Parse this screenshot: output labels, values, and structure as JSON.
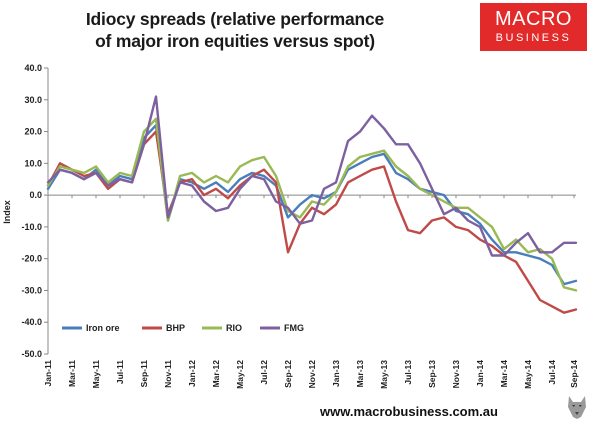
{
  "title": {
    "line1": "Idiocy spreads (relative performance",
    "line2": "of major iron equities versus spot)"
  },
  "logo": {
    "line1": "MACRO",
    "line2": "BUSINESS",
    "color": "#e32a2a",
    "icon": "wolf-badge-icon"
  },
  "footer": {
    "url": "www.macrobusiness.com.au"
  },
  "chart_data": {
    "type": "line",
    "ylabel": "Index",
    "ylim": [
      -50,
      40
    ],
    "yticks": [
      -50,
      -40,
      -30,
      -20,
      -10,
      0,
      10,
      20,
      30,
      40
    ],
    "ytick_labels": [
      "-50.0",
      "-40.0",
      "-30.0",
      "-20.0",
      "-10.0",
      "0.0",
      "10.0",
      "20.0",
      "30.0",
      "40.0"
    ],
    "xrange": [
      "2011-01",
      "2014-09"
    ],
    "xtick_labels": [
      "Jan-11",
      "Mar-11",
      "May-11",
      "Jul-11",
      "Sep-11",
      "Nov-11",
      "Jan-12",
      "Mar-12",
      "May-12",
      "Jul-12",
      "Sep-12",
      "Nov-12",
      "Jan-13",
      "Mar-13",
      "May-13",
      "Jul-13",
      "Sep-13",
      "Nov-13",
      "Jan-14",
      "Mar-14",
      "May-14",
      "Jul-14",
      "Sep-14"
    ],
    "legend_position": "lower-left",
    "grid": false,
    "x": [
      "2011-01",
      "2011-02",
      "2011-03",
      "2011-04",
      "2011-05",
      "2011-06",
      "2011-07",
      "2011-08",
      "2011-09",
      "2011-10",
      "2011-11",
      "2011-12",
      "2012-01",
      "2012-02",
      "2012-03",
      "2012-04",
      "2012-05",
      "2012-06",
      "2012-07",
      "2012-08",
      "2012-09",
      "2012-10",
      "2012-11",
      "2012-12",
      "2013-01",
      "2013-02",
      "2013-03",
      "2013-04",
      "2013-05",
      "2013-06",
      "2013-07",
      "2013-08",
      "2013-09",
      "2013-10",
      "2013-11",
      "2013-12",
      "2014-01",
      "2014-02",
      "2014-03",
      "2014-04",
      "2014-05",
      "2014-06",
      "2014-07",
      "2014-08",
      "2014-09"
    ],
    "series": [
      {
        "name": "Iron ore",
        "color": "#4a7ebb",
        "values": [
          2,
          8,
          7,
          5,
          8,
          3,
          6,
          5,
          18,
          22,
          -8,
          5,
          4,
          2,
          4,
          1,
          5,
          7,
          6,
          3,
          -7,
          -3,
          0,
          -1,
          1,
          8,
          10,
          12,
          13,
          7,
          5,
          2,
          1,
          0,
          -5,
          -6,
          -9,
          -14,
          -18,
          -18,
          -19,
          -20,
          -22,
          -28,
          -27
        ]
      },
      {
        "name": "BHP",
        "color": "#be4b48",
        "values": [
          3,
          10,
          8,
          6,
          7,
          2,
          5,
          4,
          16,
          20,
          -6,
          4,
          5,
          0,
          2,
          -1,
          3,
          6,
          8,
          4,
          -18,
          -9,
          -4,
          -6,
          -3,
          4,
          6,
          8,
          9,
          -2,
          -11,
          -12,
          -8,
          -7,
          -10,
          -11,
          -14,
          -16,
          -19,
          -21,
          -27,
          -33,
          -35,
          -37,
          -36
        ]
      },
      {
        "name": "RIO",
        "color": "#98b954",
        "values": [
          3,
          9,
          8,
          7,
          9,
          4,
          7,
          6,
          20,
          24,
          -8,
          6,
          7,
          4,
          6,
          4,
          9,
          11,
          12,
          6,
          -5,
          -7,
          -2,
          -3,
          1,
          9,
          12,
          13,
          14,
          9,
          6,
          2,
          0,
          -2,
          -4,
          -4,
          -7,
          -10,
          -17,
          -14,
          -18,
          -17,
          -20,
          -29,
          -30
        ]
      },
      {
        "name": "FMG",
        "color": "#7d60a0",
        "values": [
          4,
          8,
          7,
          5,
          7,
          3,
          5,
          4,
          16,
          31,
          -7,
          4,
          3,
          -2,
          -5,
          -4,
          2,
          6,
          5,
          -2,
          -4,
          -9,
          -8,
          2,
          4,
          17,
          20,
          25,
          21,
          16,
          16,
          10,
          2,
          -6,
          -4,
          -8,
          -10,
          -19,
          -19,
          -15,
          -12,
          -18,
          -18,
          -15,
          -15
        ]
      }
    ]
  }
}
